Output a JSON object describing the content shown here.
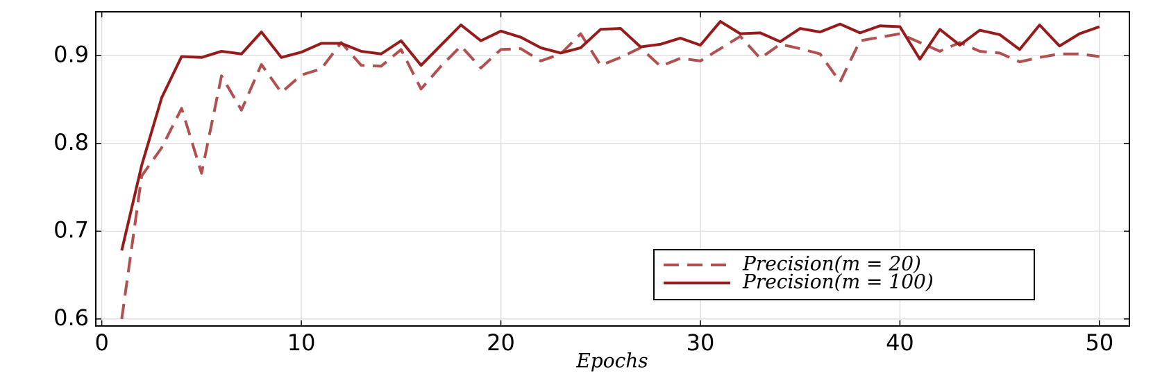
{
  "chart_data": {
    "type": "line",
    "x_label": "Epochs",
    "x": [
      1,
      2,
      3,
      4,
      5,
      6,
      7,
      8,
      9,
      10,
      11,
      12,
      13,
      14,
      15,
      16,
      17,
      18,
      19,
      20,
      21,
      22,
      23,
      24,
      25,
      26,
      27,
      28,
      29,
      30,
      31,
      32,
      33,
      34,
      35,
      36,
      37,
      38,
      39,
      40,
      41,
      42,
      43,
      44,
      45,
      46,
      47,
      48,
      49,
      50
    ],
    "series": [
      {
        "name": "Precision(m = 20)",
        "color": "#b05050",
        "dashed": true,
        "values": [
          0.6,
          0.763,
          0.795,
          0.84,
          0.766,
          0.877,
          0.838,
          0.89,
          0.858,
          0.878,
          0.885,
          0.915,
          0.889,
          0.888,
          0.907,
          0.862,
          0.888,
          0.911,
          0.886,
          0.907,
          0.908,
          0.894,
          0.902,
          0.925,
          0.889,
          0.898,
          0.909,
          0.888,
          0.897,
          0.894,
          0.908,
          0.922,
          0.897,
          0.913,
          0.908,
          0.902,
          0.87,
          0.917,
          0.921,
          0.925,
          0.915,
          0.905,
          0.915,
          0.905,
          0.903,
          0.893,
          0.898,
          0.902,
          0.902,
          0.899
        ]
      },
      {
        "name": "Precision(m = 100)",
        "color": "#961c1c",
        "dashed": false,
        "values": [
          0.678,
          0.775,
          0.852,
          0.899,
          0.898,
          0.905,
          0.902,
          0.927,
          0.898,
          0.904,
          0.914,
          0.914,
          0.905,
          0.902,
          0.917,
          0.889,
          0.912,
          0.935,
          0.917,
          0.928,
          0.921,
          0.909,
          0.903,
          0.909,
          0.93,
          0.931,
          0.91,
          0.913,
          0.92,
          0.912,
          0.939,
          0.925,
          0.926,
          0.916,
          0.931,
          0.927,
          0.936,
          0.926,
          0.934,
          0.933,
          0.896,
          0.93,
          0.912,
          0.929,
          0.924,
          0.907,
          0.935,
          0.911,
          0.925,
          0.933
        ]
      }
    ],
    "xlim": [
      -0.3,
      51.5
    ],
    "ylim": [
      0.592,
      0.95
    ],
    "xticks": [
      0,
      10,
      20,
      30,
      40,
      50
    ],
    "yticks": [
      0.6,
      0.7,
      0.8,
      0.9
    ],
    "grid": true,
    "legend": "lower right"
  }
}
